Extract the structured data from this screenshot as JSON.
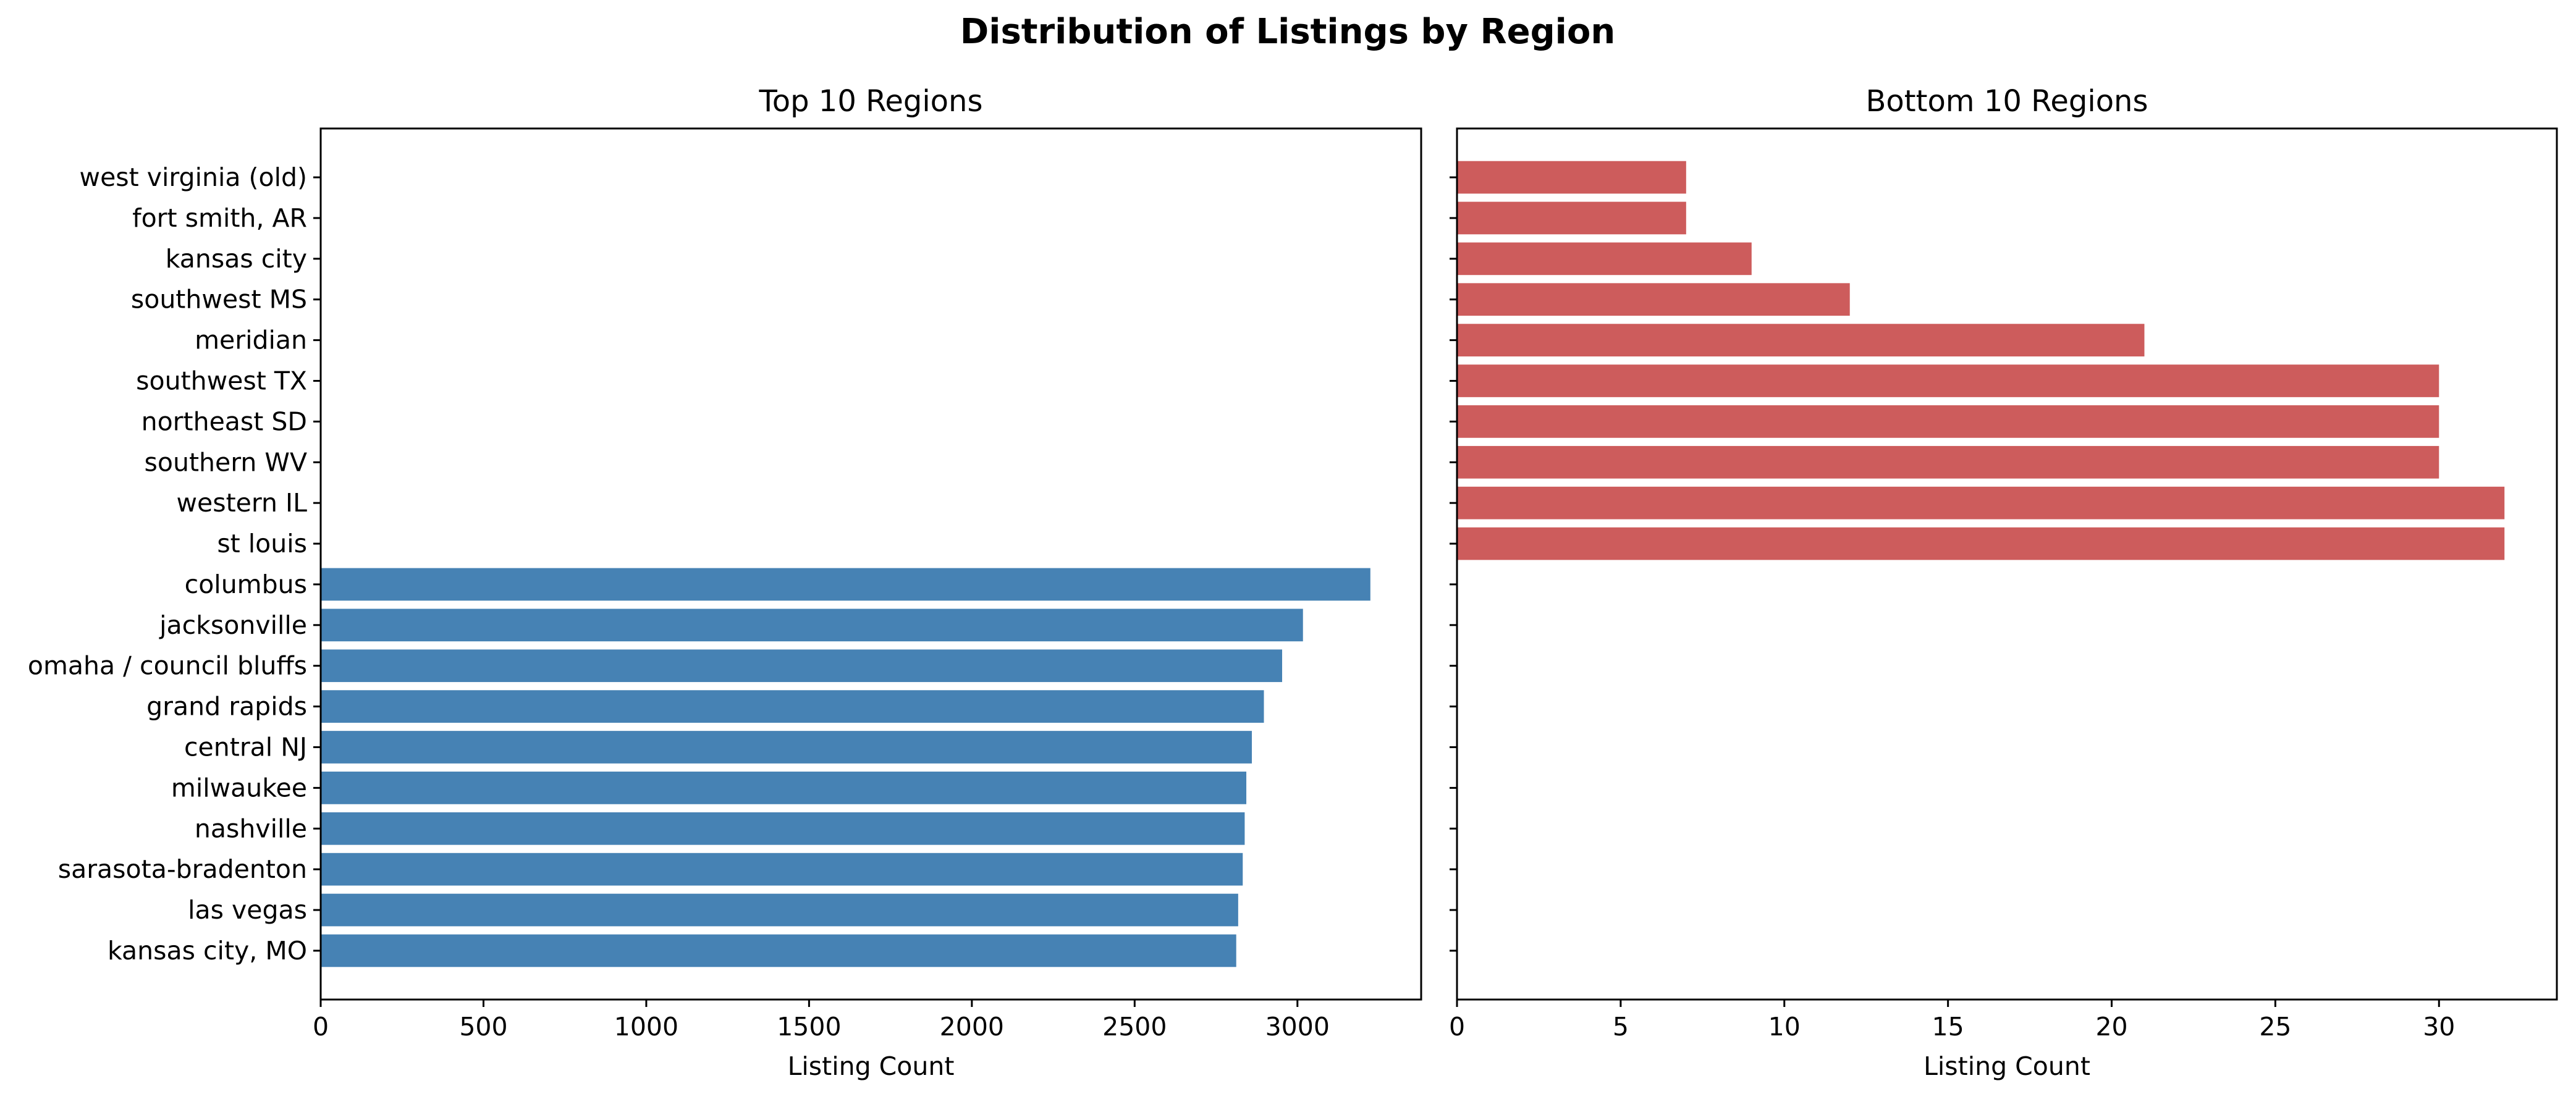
{
  "title": "Distribution of Listings by Region",
  "chart_data": [
    {
      "type": "bar",
      "orientation": "horizontal",
      "title": "Top 10 Regions",
      "xlabel": "Listing Count",
      "ylabel": "",
      "xlim": [
        0,
        3380
      ],
      "xticks": [
        0,
        500,
        1000,
        1500,
        2000,
        2500,
        3000
      ],
      "color": "#4682B4",
      "categories": [
        "kansas city, MO",
        "las vegas",
        "sarasota-bradenton",
        "nashville",
        "milwaukee",
        "central NJ",
        "grand rapids",
        "omaha / council bluffs",
        "jacksonville",
        "columbus"
      ],
      "values": [
        2812,
        2818,
        2832,
        2838,
        2843,
        2860,
        2897,
        2953,
        3017,
        3224
      ]
    },
    {
      "type": "bar",
      "orientation": "horizontal",
      "title": "Bottom 10 Regions",
      "xlabel": "Listing Count",
      "ylabel": "",
      "xlim": [
        0,
        33.6
      ],
      "xticks": [
        0,
        5,
        10,
        15,
        20,
        25,
        30
      ],
      "color": "#CD5C5C",
      "categories": [
        "st louis",
        "western IL",
        "southern WV",
        "northeast SD",
        "southwest TX",
        "meridian",
        "southwest MS",
        "kansas city",
        "fort smith, AR",
        "west virginia (old)"
      ],
      "values": [
        32,
        32,
        30,
        30,
        30,
        21,
        12,
        9,
        7,
        7
      ]
    }
  ],
  "shared_y_categories": [
    "kansas city, MO",
    "las vegas",
    "sarasota-bradenton",
    "nashville",
    "milwaukee",
    "central NJ",
    "grand rapids",
    "omaha / council bluffs",
    "jacksonville",
    "columbus",
    "st louis",
    "western IL",
    "southern WV",
    "northeast SD",
    "southwest TX",
    "meridian",
    "southwest MS",
    "kansas city",
    "fort smith, AR",
    "west virginia (old)"
  ]
}
